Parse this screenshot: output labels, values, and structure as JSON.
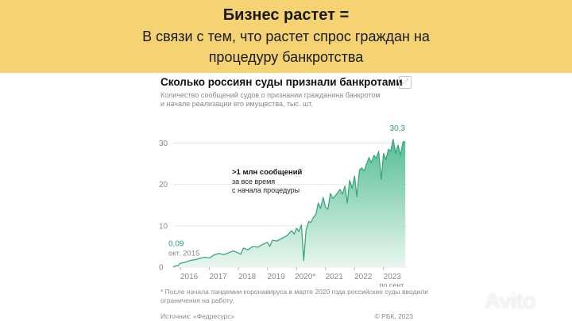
{
  "banner": {
    "line1": "Бизнес растет =",
    "line2": "В связи с тем, что растет спрос граждан на",
    "line3": "процедуру банкротства"
  },
  "card": {
    "title": "Сколько россиян суды признали банкротами",
    "subtitle_line1": "Количество сообщений судов о признании гражданина банкротом",
    "subtitle_line2": "и начале реализации его имущества, тыс. шт.",
    "footnote_line1": "* После начала пандемии коронавируса в марте 2020 года российские суды вводили",
    "footnote_line2": "ограничения на работу.",
    "source": "Источник: «Федресурс»",
    "brand": "© РБК, 2023",
    "expand_icon": "expand-icon"
  },
  "watermark": "Avito",
  "colors": {
    "banner": "#f5d372",
    "line": "#3aa77c",
    "area_top": "#4dbb8e",
    "area_bottom": "#e8f6ef",
    "accent_text": "#2e9e70"
  },
  "chart_data": {
    "type": "area",
    "title": "Сколько россиян суды признали банкротами",
    "subtitle": "Количество сообщений судов о признании гражданина банкротом и начале реализации его имущества, тыс. шт.",
    "x_ticks": [
      "2016",
      "2017",
      "2018",
      "2019",
      "2020*",
      "2021",
      "2022",
      "2023"
    ],
    "x_last_tick_note": "по сент.",
    "y_ticks": [
      0,
      10,
      20,
      30
    ],
    "ylim": [
      0,
      32
    ],
    "xlim": [
      2015.75,
      2023.8
    ],
    "grid": "horizontal",
    "start_label": {
      "value": "0,09",
      "date": "окт. 2015"
    },
    "end_label": "30,3",
    "annotation": {
      "line1": ">1 млн сообщений",
      "line2": "за все время",
      "line3": "с начала процедуры"
    },
    "series": [
      {
        "x": [
          2015.75,
          2015.92,
          2016.0,
          2016.17,
          2016.33,
          2016.5,
          2016.67,
          2016.83,
          2017.0,
          2017.17,
          2017.33,
          2017.5,
          2017.67,
          2017.83,
          2018.0,
          2018.08,
          2018.17,
          2018.33,
          2018.5,
          2018.67,
          2018.83,
          2019.0,
          2019.08,
          2019.17,
          2019.33,
          2019.5,
          2019.67,
          2019.83,
          2019.92,
          2020.0,
          2020.08,
          2020.17,
          2020.25,
          2020.33,
          2020.42,
          2020.5,
          2020.58,
          2020.67,
          2020.75,
          2020.83,
          2020.92,
          2021.0,
          2021.08,
          2021.17,
          2021.25,
          2021.33,
          2021.42,
          2021.5,
          2021.58,
          2021.67,
          2021.75,
          2021.83,
          2021.92,
          2022.0,
          2022.08,
          2022.17,
          2022.25,
          2022.33,
          2022.42,
          2022.5,
          2022.58,
          2022.67,
          2022.75,
          2022.83,
          2022.92,
          2023.0,
          2023.08,
          2023.17,
          2023.25,
          2023.33,
          2023.42,
          2023.5,
          2023.58,
          2023.67,
          2023.75
        ],
        "values": [
          0.09,
          0.4,
          0.9,
          1.2,
          1.6,
          1.8,
          2.1,
          2.4,
          2.2,
          3.0,
          3.3,
          3.0,
          3.5,
          3.9,
          3.4,
          3.1,
          4.6,
          4.2,
          5.0,
          4.8,
          5.5,
          6.0,
          5.0,
          6.5,
          6.3,
          7.0,
          7.6,
          8.8,
          8.0,
          9.4,
          8.6,
          10.2,
          1.6,
          9.0,
          11.0,
          10.8,
          12.0,
          12.8,
          15.5,
          14.2,
          16.8,
          14.5,
          14.0,
          17.8,
          16.6,
          17.2,
          18.0,
          18.8,
          17.6,
          19.6,
          15.5,
          21.0,
          19.0,
          22.0,
          17.0,
          23.5,
          24.0,
          23.2,
          25.0,
          26.5,
          25.2,
          27.0,
          26.3,
          28.0,
          21.2,
          27.5,
          26.0,
          28.5,
          28.0,
          30.9,
          27.5,
          29.5,
          27.0,
          30.3,
          30.3
        ]
      }
    ]
  }
}
